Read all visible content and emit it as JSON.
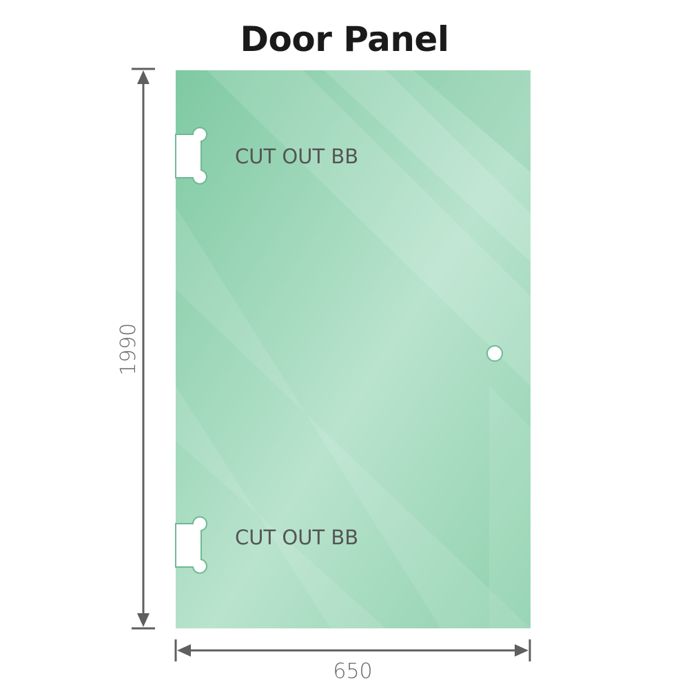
{
  "title": "Door Panel",
  "panel": {
    "color": "#86cba6",
    "cutout_top_label": "CUT OUT BB",
    "cutout_bottom_label": "CUT OUT BB"
  },
  "dimensions": {
    "height": "1990",
    "width": "650",
    "color": "#5f5f5f"
  }
}
